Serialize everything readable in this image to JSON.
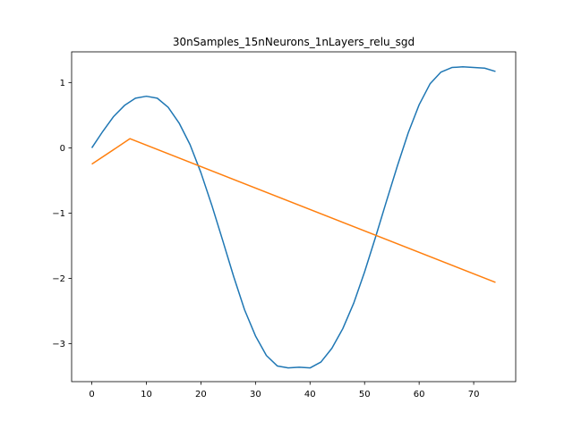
{
  "chart_data": {
    "type": "line",
    "title": "30nSamples_15nNeurons_1nLayers_relu_sgd",
    "xlabel": "",
    "ylabel": "",
    "xlim": [
      -3.7,
      77.7
    ],
    "ylim": [
      -3.58,
      1.47
    ],
    "xticks": [
      0,
      10,
      20,
      30,
      40,
      50,
      60,
      70
    ],
    "yticks": [
      -3,
      -2,
      -1,
      0,
      1
    ],
    "grid": false,
    "series": [
      {
        "color": "#1f77b4",
        "x": [
          0,
          2,
          4,
          6,
          8,
          10,
          12,
          14,
          16,
          18,
          20,
          22,
          24,
          26,
          28,
          30,
          32,
          34,
          36,
          38,
          40,
          42,
          44,
          46,
          48,
          50,
          52,
          54,
          56,
          58,
          60,
          62,
          64,
          66,
          68,
          70,
          72,
          74
        ],
        "y": [
          0.0,
          0.25,
          0.48,
          0.65,
          0.76,
          0.79,
          0.76,
          0.62,
          0.38,
          0.05,
          -0.38,
          -0.88,
          -1.42,
          -1.97,
          -2.48,
          -2.88,
          -3.18,
          -3.34,
          -3.37,
          -3.36,
          -3.37,
          -3.28,
          -3.07,
          -2.77,
          -2.38,
          -1.9,
          -1.37,
          -0.82,
          -0.28,
          0.23,
          0.66,
          0.98,
          1.16,
          1.23,
          1.24,
          1.23,
          1.22,
          1.17
        ]
      },
      {
        "color": "#ff7f0e",
        "x": [
          0,
          7,
          74
        ],
        "y": [
          -0.25,
          0.14,
          -2.06
        ]
      }
    ]
  }
}
